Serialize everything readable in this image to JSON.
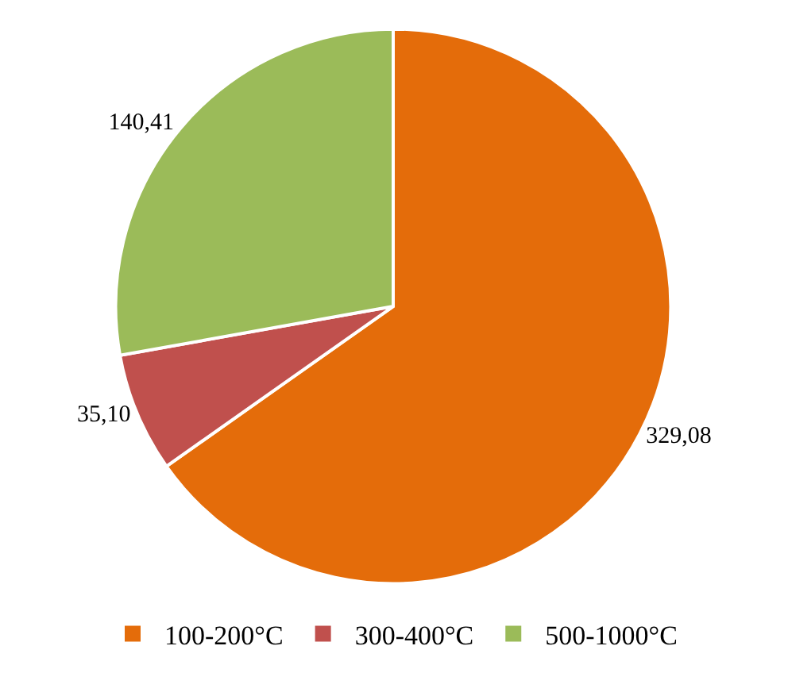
{
  "chart_data": {
    "type": "pie",
    "categories": [
      "100-200°C",
      "300-400°C",
      "500-1000°C"
    ],
    "values": [
      329.08,
      35.1,
      140.41
    ],
    "value_labels": [
      "329,08",
      "35,10",
      "140,41"
    ],
    "colors": [
      "#e46c0a",
      "#c0504d",
      "#9bbb59"
    ],
    "legend": "bottom"
  }
}
